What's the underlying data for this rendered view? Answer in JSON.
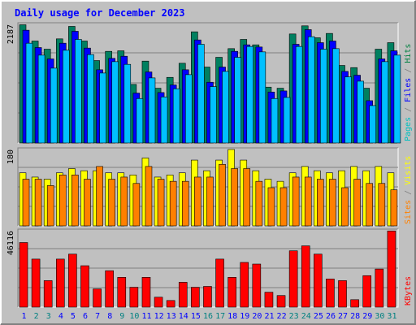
{
  "chart_data": [
    {
      "type": "bar",
      "title": "Daily usage for December 2023",
      "ymax_label": "2187",
      "y_axis_title": [
        {
          "text": "Pages",
          "color": "#00c0c0"
        },
        {
          "text": " / ",
          "color": "#7f7f7f"
        },
        {
          "text": "Files",
          "color": "#0000ff"
        },
        {
          "text": " / ",
          "color": "#7f7f7f"
        },
        {
          "text": "Hits",
          "color": "#008040"
        }
      ],
      "ylim": [
        0,
        2187
      ],
      "days": [
        "1",
        "2",
        "3",
        "4",
        "5",
        "6",
        "7",
        "8",
        "9",
        "10",
        "11",
        "12",
        "13",
        "14",
        "15",
        "16",
        "17",
        "18",
        "19",
        "20",
        "21",
        "22",
        "23",
        "24",
        "25",
        "26",
        "27",
        "28",
        "29",
        "30",
        "31"
      ],
      "weekend_days": [
        "2",
        "3",
        "9",
        "10",
        "16",
        "17",
        "23",
        "24",
        "30",
        "31"
      ],
      "series": [
        {
          "name": "Hits",
          "color": "#008060",
          "values": [
            2180,
            1880,
            1730,
            1920,
            2150,
            1880,
            1520,
            1690,
            1700,
            1080,
            1510,
            1010,
            1210,
            1470,
            2050,
            1400,
            1580,
            1740,
            1910,
            1810,
            1030,
            1010,
            2010,
            2160,
            1940,
            2020,
            1430,
            1390,
            1010,
            1730,
            1850
          ]
        },
        {
          "name": "Files",
          "color": "#0000ff",
          "values": [
            2080,
            1760,
            1550,
            1840,
            2060,
            1750,
            1350,
            1560,
            1600,
            920,
            1310,
            930,
            1070,
            1350,
            1900,
            1120,
            1400,
            1690,
            1810,
            1770,
            940,
            960,
            1820,
            2090,
            1850,
            1880,
            1320,
            1250,
            780,
            1550,
            1700
          ]
        },
        {
          "name": "Pages",
          "color": "#00c0ff",
          "values": [
            1840,
            1620,
            1380,
            1710,
            1910,
            1630,
            1290,
            1500,
            1450,
            820,
            1200,
            850,
            1000,
            1260,
            1820,
            1040,
            1320,
            1580,
            1780,
            1680,
            820,
            840,
            1780,
            1960,
            1730,
            1740,
            1220,
            1140,
            690,
            1500,
            1620
          ]
        }
      ]
    },
    {
      "type": "bar",
      "ymax_label": "180",
      "y_axis_title": [
        {
          "text": "Sites",
          "color": "#ff8000"
        },
        {
          "text": " / ",
          "color": "#7f7f7f"
        },
        {
          "text": "Visits",
          "color": "#ffff00"
        }
      ],
      "ylim": [
        0,
        180
      ],
      "series": [
        {
          "name": "Visits",
          "color": "#ffff00",
          "values": [
            125,
            115,
            110,
            125,
            135,
            130,
            130,
            125,
            125,
            120,
            160,
            115,
            120,
            125,
            155,
            130,
            155,
            180,
            155,
            130,
            110,
            105,
            125,
            140,
            130,
            125,
            130,
            140,
            130,
            140,
            125
          ]
        },
        {
          "name": "Sites",
          "color": "#ff8000",
          "values": [
            110,
            110,
            95,
            120,
            120,
            110,
            140,
            110,
            115,
            100,
            140,
            110,
            105,
            105,
            115,
            115,
            145,
            135,
            135,
            105,
            90,
            90,
            115,
            115,
            110,
            110,
            90,
            110,
            100,
            100,
            85
          ]
        }
      ]
    },
    {
      "type": "bar",
      "ymax_label": "46116",
      "y_axis_title": [
        {
          "text": "KBytes",
          "color": "#ff0000"
        }
      ],
      "ylim": [
        0,
        46116
      ],
      "series": [
        {
          "name": "KBytes",
          "color": "#ff0000",
          "values": [
            39000,
            29000,
            16000,
            29000,
            32000,
            25000,
            11000,
            22000,
            18000,
            12000,
            18000,
            6000,
            4000,
            15000,
            12000,
            12500,
            29000,
            18000,
            27000,
            26000,
            9000,
            7000,
            34000,
            37000,
            32000,
            17000,
            16000,
            4500,
            19000,
            23000,
            46000
          ]
        }
      ]
    }
  ],
  "colors": {
    "title": "#0000ff",
    "weekday_label": "#0000ff",
    "weekend_label": "#008080",
    "background": "#c0c0c0",
    "plot_background": "#c0c0c0",
    "gridline": "#808080"
  }
}
